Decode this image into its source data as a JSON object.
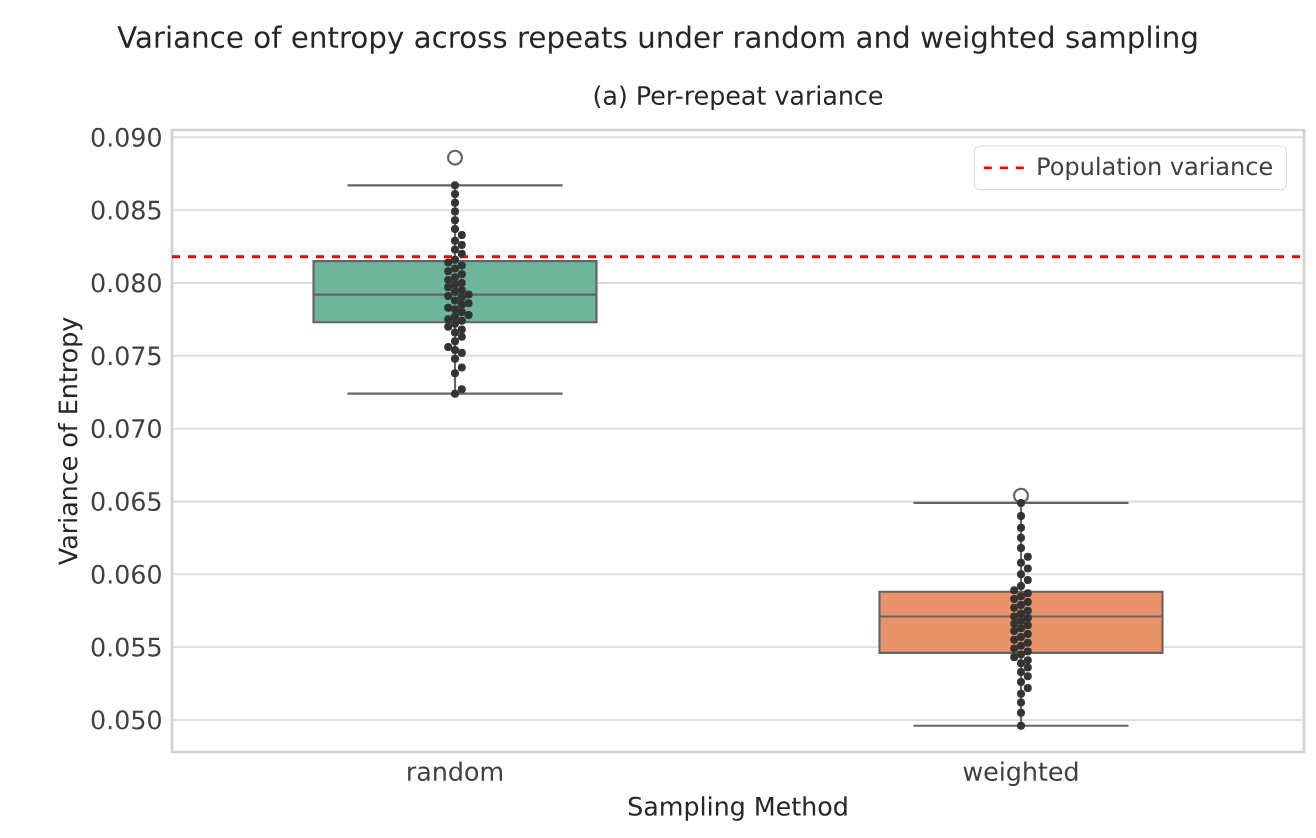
{
  "chart_data": {
    "type": "box",
    "title": "Variance of entropy across repeats under random and weighted sampling",
    "subtitle": "(a) Per-repeat variance",
    "xlabel": "Sampling Method",
    "ylabel": "Variance of Entropy",
    "categories": [
      "random",
      "weighted"
    ],
    "colors": [
      "#6db59b",
      "#e9936b"
    ],
    "boxes": [
      {
        "low": 0.0724,
        "q1": 0.0773,
        "median": 0.0792,
        "q3": 0.0815,
        "high": 0.0867,
        "outliers": [
          0.0886
        ]
      },
      {
        "low": 0.0496,
        "q1": 0.0546,
        "median": 0.0571,
        "q3": 0.0588,
        "high": 0.0649,
        "outliers": [
          0.0654
        ]
      }
    ],
    "series": [
      {
        "type": "scatter",
        "color": "#333333",
        "x": [
          "random",
          "random",
          "random",
          "random",
          "random",
          "random",
          "random",
          "random",
          "random",
          "random",
          "random",
          "random",
          "random",
          "random",
          "random",
          "random",
          "random",
          "random",
          "random",
          "random",
          "random",
          "random",
          "random",
          "random",
          "random",
          "random",
          "random",
          "random",
          "random",
          "random",
          "random",
          "random",
          "random",
          "random",
          "random",
          "random",
          "random",
          "random",
          "random",
          "random",
          "random",
          "random",
          "random",
          "random",
          "random",
          "random",
          "random",
          "random",
          "random",
          "random",
          "random",
          "weighted",
          "weighted",
          "weighted",
          "weighted",
          "weighted",
          "weighted",
          "weighted",
          "weighted",
          "weighted",
          "weighted",
          "weighted",
          "weighted",
          "weighted",
          "weighted",
          "weighted",
          "weighted",
          "weighted",
          "weighted",
          "weighted",
          "weighted",
          "weighted",
          "weighted",
          "weighted",
          "weighted",
          "weighted",
          "weighted",
          "weighted",
          "weighted",
          "weighted",
          "weighted",
          "weighted",
          "weighted",
          "weighted",
          "weighted",
          "weighted",
          "weighted",
          "weighted",
          "weighted",
          "weighted",
          "weighted",
          "weighted",
          "weighted",
          "weighted",
          "weighted",
          "weighted",
          "weighted",
          "weighted"
        ],
        "values": [
          0.0724,
          0.0727,
          0.0738,
          0.0742,
          0.0748,
          0.0752,
          0.0754,
          0.0756,
          0.076,
          0.0763,
          0.0766,
          0.0768,
          0.077,
          0.0772,
          0.0774,
          0.0775,
          0.0777,
          0.0778,
          0.078,
          0.0782,
          0.0783,
          0.0785,
          0.0786,
          0.0788,
          0.079,
          0.0791,
          0.0792,
          0.0794,
          0.0795,
          0.0797,
          0.0799,
          0.08,
          0.0802,
          0.0804,
          0.0806,
          0.0808,
          0.081,
          0.0812,
          0.0814,
          0.0816,
          0.082,
          0.0823,
          0.0826,
          0.0829,
          0.0833,
          0.0837,
          0.0843,
          0.0849,
          0.0855,
          0.0861,
          0.0867,
          0.0496,
          0.0505,
          0.0512,
          0.0518,
          0.0522,
          0.0526,
          0.053,
          0.0533,
          0.0536,
          0.0539,
          0.0541,
          0.0543,
          0.0545,
          0.0547,
          0.0549,
          0.0551,
          0.0553,
          0.0555,
          0.0557,
          0.0559,
          0.0561,
          0.0563,
          0.0565,
          0.0566,
          0.0568,
          0.057,
          0.0571,
          0.0573,
          0.0575,
          0.0577,
          0.0579,
          0.0581,
          0.0583,
          0.0585,
          0.0587,
          0.0589,
          0.0592,
          0.0596,
          0.06,
          0.0604,
          0.0608,
          0.0612,
          0.0618,
          0.0625,
          0.0632,
          0.064,
          0.0649
        ]
      }
    ],
    "ref_lines": [
      {
        "axis": "y",
        "value": 0.0818,
        "label": "Population variance",
        "color": "#ff0000",
        "line_style": "dashed"
      }
    ],
    "ylim": [
      0.0478,
      0.0905
    ],
    "yticks": [
      {
        "value": 0.05,
        "label": "0.050"
      },
      0.055,
      {
        "value": 0.06,
        "label": "0.060"
      },
      0.065,
      {
        "value": 0.07,
        "label": "0.070"
      },
      0.075,
      {
        "value": 0.08,
        "label": "0.080"
      },
      0.085,
      {
        "value": 0.09,
        "label": "0.090"
      }
    ],
    "grid": "y",
    "legend": "top right"
  }
}
